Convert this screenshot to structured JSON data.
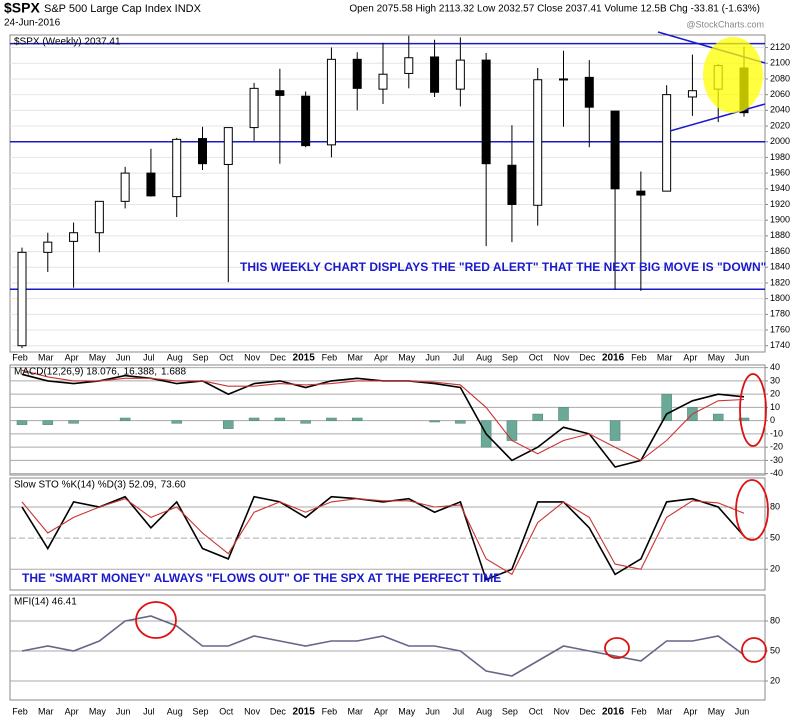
{
  "header": {
    "symbol": "$SPX",
    "name": "S&P 500 Large Cap Index INDX",
    "date": "24-Jun-2016",
    "quote": "Open 2075.58 High 2113.32 Low 2032.57 Close 2037.41 Volume 12.5B Chg -33.81 (-1.63%)",
    "watermark": "@StockCharts.com"
  },
  "chart_data": [
    {
      "type": "candlestick",
      "legend": [
        "$SPX (Weekly) 2037.41"
      ],
      "categories": [
        "Feb",
        "Mar",
        "Apr",
        "May",
        "Jun",
        "Jul",
        "Aug",
        "Sep",
        "Oct",
        "Nov",
        "Dec",
        "2015",
        "Feb",
        "Mar",
        "Apr",
        "May",
        "Jun",
        "Jul",
        "Aug",
        "Sep",
        "Oct",
        "Nov",
        "Dec",
        "2016",
        "Feb",
        "Mar",
        "Apr",
        "May",
        "Jun"
      ],
      "open": [
        1740,
        1859,
        1873,
        1884,
        1924,
        1960,
        1930,
        2004,
        1971,
        2018,
        2065,
        2058,
        1996,
        2105,
        2067,
        2087,
        2108,
        2067,
        2104,
        1970,
        1919,
        2080,
        2082,
        2039,
        1937,
        1937,
        2057,
        2067,
        2094
      ],
      "high": [
        1865,
        1884,
        1897,
        1924,
        1968,
        1991,
        2005,
        2019,
        2018,
        2075,
        2093,
        2064,
        2120,
        2114,
        2126,
        2135,
        2130,
        2133,
        2113,
        2021,
        2094,
        2116,
        2104,
        2039,
        1962,
        2072,
        2111,
        2099,
        2121
      ],
      "low": [
        1737,
        1834,
        1814,
        1859,
        1915,
        1930,
        1904,
        1964,
        1821,
        2001,
        1972,
        1993,
        1980,
        2040,
        2048,
        2068,
        2057,
        2045,
        1867,
        1872,
        1893,
        2019,
        1993,
        1812,
        1810,
        1937,
        2033,
        2025,
        2032
      ],
      "close": [
        1859,
        1872,
        1884,
        1924,
        1960,
        1931,
        2003,
        1972,
        2018,
        2068,
        2059,
        1995,
        2105,
        2068,
        2086,
        2107,
        2063,
        2104,
        1972,
        1920,
        2079,
        2080,
        2044,
        1940,
        1932,
        2060,
        2065,
        2097,
        2037
      ],
      "up_color": "#ffffff",
      "down_color": "#000000",
      "hlines": [
        2125,
        2000,
        1812
      ],
      "hline_color": "#1a1acc",
      "ylim": [
        1732,
        2136
      ],
      "yticks": [
        1740,
        1760,
        1780,
        1800,
        1820,
        1840,
        1860,
        1880,
        1900,
        1920,
        1940,
        1960,
        1980,
        2000,
        2020,
        2040,
        2060,
        2080,
        2100,
        2120
      ],
      "annotations": [
        "THIS WEEKLY CHART DISPLAYS THE \"RED ALERT\" THAT THE NEXT BIG MOVE IS \"DOWN\""
      ]
    },
    {
      "type": "line",
      "legend": [
        "MACD(12,26,9) 18.076,",
        "16.388,",
        "1.688"
      ],
      "series": [
        {
          "style": "line",
          "color": "#000000",
          "values": [
            35,
            30,
            28,
            30,
            34,
            32,
            28,
            30,
            20,
            28,
            30,
            25,
            30,
            32,
            30,
            30,
            28,
            25,
            -10,
            -30,
            -20,
            -5,
            -10,
            -35,
            -30,
            5,
            15,
            20,
            18
          ]
        },
        {
          "style": "line",
          "color": "#cc3333",
          "values": [
            38,
            33,
            30,
            30,
            32,
            32,
            30,
            30,
            26,
            26,
            28,
            27,
            28,
            30,
            30,
            30,
            29,
            27,
            10,
            -15,
            -25,
            -15,
            -10,
            -20,
            -30,
            -15,
            5,
            15,
            16
          ]
        },
        {
          "style": "bar",
          "color": "#6aa898",
          "values": [
            -3,
            -3,
            -2,
            0,
            2,
            0,
            -2,
            0,
            -6,
            2,
            2,
            -2,
            2,
            2,
            0,
            0,
            -1,
            -2,
            -20,
            -15,
            5,
            10,
            0,
            -15,
            0,
            20,
            10,
            5,
            2
          ]
        }
      ],
      "ylim": [
        -41,
        42
      ],
      "yticks": [
        -40,
        -30,
        -20,
        -10,
        0,
        10,
        20,
        30,
        40
      ]
    },
    {
      "type": "line",
      "legend": [
        "Slow STO %K(14) %D(3) 52.09,",
        "73.60"
      ],
      "series": [
        {
          "style": "line",
          "color": "#000000",
          "values": [
            80,
            40,
            85,
            80,
            90,
            60,
            85,
            40,
            30,
            90,
            85,
            70,
            90,
            88,
            85,
            88,
            75,
            85,
            10,
            20,
            85,
            85,
            60,
            15,
            30,
            85,
            88,
            80,
            52
          ]
        },
        {
          "style": "line",
          "color": "#cc3333",
          "values": [
            85,
            55,
            70,
            80,
            88,
            70,
            80,
            55,
            35,
            75,
            85,
            75,
            85,
            88,
            86,
            86,
            80,
            82,
            30,
            15,
            65,
            85,
            70,
            25,
            20,
            70,
            86,
            84,
            74
          ]
        }
      ],
      "ylim": [
        0,
        108
      ],
      "yticks": [
        20,
        50,
        80
      ],
      "annotations": [
        "THE \"SMART MONEY\" ALWAYS \"FLOWS OUT\" OF THE SPX AT THE PERFECT TIME"
      ]
    },
    {
      "type": "line",
      "legend": [
        "MFI(14) 46.41"
      ],
      "series": [
        {
          "style": "line",
          "color": "#666688",
          "values": [
            50,
            55,
            50,
            60,
            80,
            85,
            75,
            55,
            55,
            65,
            60,
            55,
            60,
            60,
            65,
            55,
            55,
            50,
            30,
            25,
            40,
            55,
            50,
            45,
            40,
            60,
            60,
            65,
            46
          ]
        }
      ],
      "ylim": [
        1,
        106
      ],
      "yticks": [
        20,
        50,
        80
      ]
    }
  ]
}
